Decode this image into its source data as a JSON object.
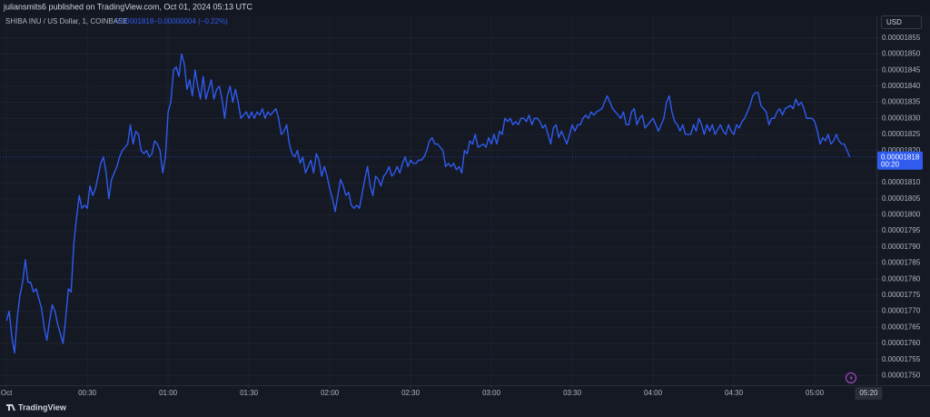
{
  "header": {
    "text": "juliansmits6 published on TradingView.com, Oct 01, 2024 05:13 UTC"
  },
  "footer": {
    "brand": "TradingView"
  },
  "chart_data": {
    "type": "line",
    "title": "SHIBA INU / US Dollar, 1, COINBASE",
    "change": "−0.00000004 (−0.22%)",
    "currency": "USD",
    "countdown": "00:20",
    "current_time": {
      "value": 320,
      "label": "05:20"
    },
    "grid": true,
    "xlim": [
      -2.4,
      322.9
    ],
    "ylim": [
      1.747e-05,
      1.862e-05
    ],
    "xticks": [
      {
        "value": 0,
        "label": "Oct"
      },
      {
        "value": 30,
        "label": "00:30"
      },
      {
        "value": 60,
        "label": "01:00"
      },
      {
        "value": 90,
        "label": "01:30"
      },
      {
        "value": 120,
        "label": "02:00"
      },
      {
        "value": 150,
        "label": "02:30"
      },
      {
        "value": 180,
        "label": "03:00"
      },
      {
        "value": 210,
        "label": "03:30"
      },
      {
        "value": 240,
        "label": "04:00"
      },
      {
        "value": 270,
        "label": "04:30"
      },
      {
        "value": 300,
        "label": "05:00"
      }
    ],
    "yticks": [
      {
        "value": 1.75e-05,
        "label": "0.00001750"
      },
      {
        "value": 1.755e-05,
        "label": "0.00001755"
      },
      {
        "value": 1.76e-05,
        "label": "0.00001760"
      },
      {
        "value": 1.765e-05,
        "label": "0.00001765"
      },
      {
        "value": 1.77e-05,
        "label": "0.00001770"
      },
      {
        "value": 1.775e-05,
        "label": "0.00001775"
      },
      {
        "value": 1.78e-05,
        "label": "0.00001780"
      },
      {
        "value": 1.785e-05,
        "label": "0.00001785"
      },
      {
        "value": 1.79e-05,
        "label": "0.00001790"
      },
      {
        "value": 1.795e-05,
        "label": "0.00001795"
      },
      {
        "value": 1.8e-05,
        "label": "0.00001800"
      },
      {
        "value": 1.805e-05,
        "label": "0.00001805"
      },
      {
        "value": 1.81e-05,
        "label": "0.00001810"
      },
      {
        "value": 1.815e-05,
        "label": "0.00001815"
      },
      {
        "value": 1.82e-05,
        "label": "0.00001820"
      },
      {
        "value": 1.825e-05,
        "label": "0.00001825"
      },
      {
        "value": 1.83e-05,
        "label": "0.00001830"
      },
      {
        "value": 1.835e-05,
        "label": "0.00001835"
      },
      {
        "value": 1.84e-05,
        "label": "0.00001840"
      },
      {
        "value": 1.845e-05,
        "label": "0.00001845"
      },
      {
        "value": 1.85e-05,
        "label": "0.00001850"
      },
      {
        "value": 1.855e-05,
        "label": "0.00001855"
      }
    ],
    "x": [
      0,
      1,
      2,
      3,
      4,
      5,
      6,
      7,
      8,
      9,
      10,
      11,
      12,
      13,
      14,
      15,
      16,
      17,
      18,
      19,
      20,
      21,
      22,
      23,
      24,
      25,
      26,
      27,
      28,
      29,
      30,
      31,
      32,
      33,
      34,
      35,
      36,
      37,
      38,
      39,
      40,
      41,
      42,
      43,
      45,
      46,
      47,
      48,
      49,
      50,
      51,
      52,
      53,
      54,
      55,
      56,
      57,
      58,
      59,
      60,
      61,
      62,
      63,
      64,
      65,
      66,
      67,
      68,
      69,
      70,
      71,
      72,
      73,
      74,
      75,
      76,
      77,
      78,
      79,
      80,
      81,
      82,
      83,
      84,
      85,
      86,
      87,
      89,
      90,
      91,
      92,
      93,
      94,
      95,
      96,
      97,
      98,
      99,
      100,
      101,
      102,
      103,
      104,
      105,
      106,
      107,
      108,
      109,
      110,
      111,
      112,
      113,
      114,
      115,
      116,
      117,
      118,
      119,
      120,
      121,
      122,
      123,
      124,
      125,
      126,
      127,
      128,
      129,
      130,
      131,
      133,
      134,
      135,
      136,
      137,
      138,
      139,
      140,
      141,
      142,
      143,
      144,
      145,
      146,
      147,
      148,
      149,
      150,
      151,
      152,
      153,
      154,
      155,
      156,
      157,
      158,
      159,
      160,
      161,
      162,
      163,
      164,
      165,
      166,
      167,
      168,
      169,
      170,
      171,
      172,
      173,
      174,
      175,
      177,
      178,
      179,
      180,
      181,
      182,
      183,
      184,
      185,
      186,
      187,
      188,
      189,
      190,
      191,
      192,
      193,
      194,
      195,
      196,
      197,
      198,
      199,
      200,
      201,
      202,
      203,
      204,
      205,
      206,
      207,
      208,
      209,
      210,
      211,
      212,
      213,
      214,
      215,
      216,
      217,
      218,
      219,
      221,
      222,
      223,
      224,
      225,
      226,
      227,
      228,
      229,
      230,
      231,
      232,
      233,
      234,
      235,
      236,
      237,
      238,
      239,
      240,
      241,
      242,
      243,
      244,
      245,
      246,
      247,
      248,
      249,
      250,
      251,
      252,
      253,
      254,
      255,
      256,
      257,
      258,
      259,
      260,
      261,
      262,
      263,
      265,
      266,
      267,
      268,
      269,
      270,
      271,
      272,
      273,
      274,
      275,
      276,
      277,
      278,
      279,
      280,
      281,
      282,
      283,
      284,
      285,
      286,
      287,
      288,
      289,
      291,
      292,
      293,
      294,
      295,
      296,
      297,
      298,
      299,
      300,
      301,
      302,
      303,
      304,
      305,
      306,
      307,
      308,
      309,
      310,
      311,
      312,
      313
    ],
    "series": [
      {
        "name": "SHIBA INU / US Dollar",
        "color": "#2f5bef",
        "values": [
          1.767e-05,
          1.77e-05,
          1.762e-05,
          1.757e-05,
          1.768e-05,
          1.775e-05,
          1.779e-05,
          1.786e-05,
          1.779e-05,
          1.779e-05,
          1.776e-05,
          1.777e-05,
          1.774e-05,
          1.771e-05,
          1.765e-05,
          1.761e-05,
          1.767e-05,
          1.772e-05,
          1.77e-05,
          1.766e-05,
          1.763e-05,
          1.76e-05,
          1.768e-05,
          1.777e-05,
          1.776e-05,
          1.791e-05,
          1.799e-05,
          1.806e-05,
          1.802e-05,
          1.803e-05,
          1.802e-05,
          1.809e-05,
          1.806e-05,
          1.808e-05,
          1.812e-05,
          1.816e-05,
          1.818e-05,
          1.813e-05,
          1.805e-05,
          1.811e-05,
          1.813e-05,
          1.815e-05,
          1.818e-05,
          1.82e-05,
          1.822e-05,
          1.828e-05,
          1.822e-05,
          1.826e-05,
          1.825e-05,
          1.82e-05,
          1.819e-05,
          1.82e-05,
          1.818e-05,
          1.819e-05,
          1.823e-05,
          1.822e-05,
          1.82e-05,
          1.813e-05,
          1.818e-05,
          1.832e-05,
          1.835e-05,
          1.845e-05,
          1.846e-05,
          1.843e-05,
          1.85e-05,
          1.847e-05,
          1.839e-05,
          1.842e-05,
          1.837e-05,
          1.845e-05,
          1.84e-05,
          1.836e-05,
          1.843e-05,
          1.836e-05,
          1.839e-05,
          1.842e-05,
          1.836e-05,
          1.839e-05,
          1.84e-05,
          1.836e-05,
          1.83e-05,
          1.837e-05,
          1.84e-05,
          1.835e-05,
          1.839e-05,
          1.835e-05,
          1.83e-05,
          1.832e-05,
          1.83e-05,
          1.832e-05,
          1.83e-05,
          1.832e-05,
          1.831e-05,
          1.833e-05,
          1.83e-05,
          1.832e-05,
          1.831e-05,
          1.832e-05,
          1.833e-05,
          1.83e-05,
          1.825e-05,
          1.826e-05,
          1.828e-05,
          1.822e-05,
          1.819e-05,
          1.818e-05,
          1.82e-05,
          1.816e-05,
          1.818e-05,
          1.813e-05,
          1.815e-05,
          1.817e-05,
          1.813e-05,
          1.819e-05,
          1.817e-05,
          1.812e-05,
          1.815e-05,
          1.812e-05,
          1.808e-05,
          1.805e-05,
          1.801e-05,
          1.806e-05,
          1.811e-05,
          1.809e-05,
          1.806e-05,
          1.807e-05,
          1.803e-05,
          1.802e-05,
          1.803e-05,
          1.802e-05,
          1.811e-05,
          1.815e-05,
          1.809e-05,
          1.806e-05,
          1.812e-05,
          1.811e-05,
          1.809e-05,
          1.812e-05,
          1.813e-05,
          1.815e-05,
          1.812e-05,
          1.813e-05,
          1.815e-05,
          1.813e-05,
          1.816e-05,
          1.818e-05,
          1.815e-05,
          1.817e-05,
          1.816e-05,
          1.816e-05,
          1.817e-05,
          1.817e-05,
          1.818e-05,
          1.82e-05,
          1.823e-05,
          1.824e-05,
          1.822e-05,
          1.822e-05,
          1.821e-05,
          1.82e-05,
          1.815e-05,
          1.816e-05,
          1.815e-05,
          1.816e-05,
          1.814e-05,
          1.815e-05,
          1.813e-05,
          1.82e-05,
          1.819e-05,
          1.823e-05,
          1.822e-05,
          1.825e-05,
          1.821e-05,
          1.822e-05,
          1.821e-05,
          1.824e-05,
          1.822e-05,
          1.825e-05,
          1.822e-05,
          1.826e-05,
          1.825e-05,
          1.83e-05,
          1.829e-05,
          1.83e-05,
          1.828e-05,
          1.829e-05,
          1.828e-05,
          1.83e-05,
          1.83e-05,
          1.829e-05,
          1.831e-05,
          1.828e-05,
          1.83e-05,
          1.83e-05,
          1.829e-05,
          1.827e-05,
          1.828e-05,
          1.825e-05,
          1.822e-05,
          1.827e-05,
          1.828e-05,
          1.824e-05,
          1.826e-05,
          1.824e-05,
          1.822e-05,
          1.825e-05,
          1.828e-05,
          1.826e-05,
          1.828e-05,
          1.828e-05,
          1.83e-05,
          1.831e-05,
          1.83e-05,
          1.832e-05,
          1.831e-05,
          1.832e-05,
          1.833e-05,
          1.835e-05,
          1.837e-05,
          1.835e-05,
          1.833e-05,
          1.832e-05,
          1.831e-05,
          1.83e-05,
          1.832e-05,
          1.828e-05,
          1.828e-05,
          1.832e-05,
          1.833e-05,
          1.828e-05,
          1.83e-05,
          1.831e-05,
          1.827e-05,
          1.828e-05,
          1.829e-05,
          1.83e-05,
          1.828e-05,
          1.826e-05,
          1.828e-05,
          1.83e-05,
          1.835e-05,
          1.837e-05,
          1.832e-05,
          1.829e-05,
          1.828e-05,
          1.826e-05,
          1.828e-05,
          1.825e-05,
          1.825e-05,
          1.825e-05,
          1.828e-05,
          1.826e-05,
          1.83e-05,
          1.828e-05,
          1.825e-05,
          1.828e-05,
          1.826e-05,
          1.828e-05,
          1.825e-05,
          1.828e-05,
          1.826e-05,
          1.825e-05,
          1.828e-05,
          1.826e-05,
          1.825e-05,
          1.828e-05,
          1.827e-05,
          1.829e-05,
          1.83e-05,
          1.832e-05,
          1.834e-05,
          1.837e-05,
          1.838e-05,
          1.838e-05,
          1.834e-05,
          1.833e-05,
          1.832e-05,
          1.828e-05,
          1.83e-05,
          1.83e-05,
          1.832e-05,
          1.833e-05,
          1.831e-05,
          1.833e-05,
          1.834e-05,
          1.833e-05,
          1.836e-05,
          1.834e-05,
          1.835e-05,
          1.833e-05,
          1.83e-05,
          1.83e-05,
          1.83e-05,
          1.829e-05,
          1.826e-05,
          1.822e-05,
          1.824e-05,
          1.823e-05,
          1.825e-05,
          1.822e-05,
          1.823e-05,
          1.825e-05,
          1.823e-05,
          1.822e-05,
          1.822e-05,
          1.82e-05,
          1.818e-05
        ]
      }
    ]
  }
}
